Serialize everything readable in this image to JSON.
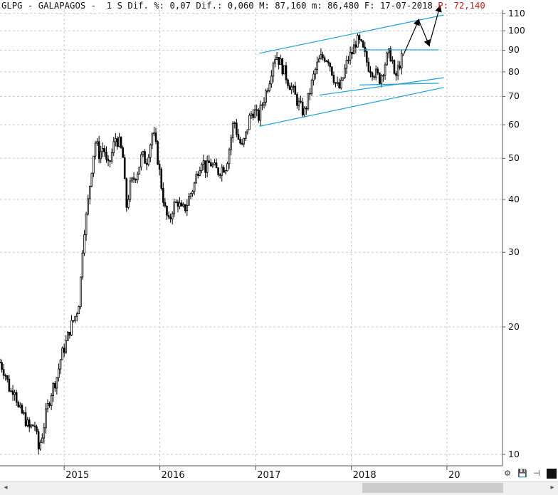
{
  "infobar": {
    "symbol": "GLPG",
    "name": "GALAPAGOS",
    "period": "1 S",
    "dif_pct_label": "Dif. %:",
    "dif_pct_value": "0,07",
    "dif_label": "Dif.:",
    "dif_value": "0,060",
    "max_label": "M:",
    "max_value": "87,160",
    "min_label": "m:",
    "min_value": "86,480",
    "date_label": "F:",
    "date_value": "17-07-2018",
    "price_label": "P:",
    "price_value": "72,140"
  },
  "colors": {
    "candles": "#000000",
    "trendlines": "#1aa3d4",
    "grid": "#c8c8c8",
    "price_label": "#d01818",
    "projection": "#000000"
  },
  "chart_data": {
    "type": "line",
    "title": "",
    "xlabel": "",
    "ylabel": "",
    "y_scale": "log",
    "ylim": [
      9.4,
      112
    ],
    "xlim": [
      "2014-05-01",
      "2019-08-01"
    ],
    "yticks": [
      10,
      20,
      30,
      40,
      50,
      60,
      70,
      80,
      90,
      100,
      110
    ],
    "xticks": [
      {
        "date": "2015-01-01",
        "label": "2015"
      },
      {
        "date": "2016-01-01",
        "label": "2016"
      },
      {
        "date": "2017-01-01",
        "label": "2017"
      },
      {
        "date": "2018-01-01",
        "label": "2018"
      },
      {
        "date": "2019-01-01",
        "label": "20"
      }
    ],
    "grid": true,
    "series": [
      {
        "style": "weekly-candles",
        "points": [
          [
            "2014-05-01",
            16.5
          ],
          [
            "2014-05-20",
            15.6
          ],
          [
            "2014-06-10",
            14.0
          ],
          [
            "2014-06-25",
            14.5
          ],
          [
            "2014-07-10",
            12.8
          ],
          [
            "2014-08-01",
            12.3
          ],
          [
            "2014-08-20",
            11.5
          ],
          [
            "2014-09-10",
            11.8
          ],
          [
            "2014-09-25",
            10.3
          ],
          [
            "2014-10-10",
            11.2
          ],
          [
            "2014-10-25",
            12.6
          ],
          [
            "2014-11-15",
            14.2
          ],
          [
            "2014-12-05",
            15.3
          ],
          [
            "2014-12-20",
            17.0
          ],
          [
            "2015-01-10",
            18.5
          ],
          [
            "2015-01-25",
            20.0
          ],
          [
            "2015-02-10",
            21.0
          ],
          [
            "2015-02-25",
            22.5
          ],
          [
            "2015-03-05",
            26.0
          ],
          [
            "2015-03-15",
            33.0
          ],
          [
            "2015-03-28",
            37.0
          ],
          [
            "2015-04-10",
            44.0
          ],
          [
            "2015-04-20",
            50.0
          ],
          [
            "2015-05-01",
            55.0
          ],
          [
            "2015-05-15",
            51.0
          ],
          [
            "2015-06-01",
            53.5
          ],
          [
            "2015-06-15",
            47.0
          ],
          [
            "2015-07-01",
            51.0
          ],
          [
            "2015-07-15",
            56.0
          ],
          [
            "2015-08-01",
            54.0
          ],
          [
            "2015-08-15",
            49.5
          ],
          [
            "2015-08-25",
            38.0
          ],
          [
            "2015-09-10",
            43.0
          ],
          [
            "2015-09-25",
            45.0
          ],
          [
            "2015-10-10",
            47.0
          ],
          [
            "2015-10-25",
            51.0
          ],
          [
            "2015-11-10",
            49.0
          ],
          [
            "2015-11-25",
            54.0
          ],
          [
            "2015-12-05",
            58.0
          ],
          [
            "2015-12-20",
            52.0
          ],
          [
            "2016-01-05",
            44.0
          ],
          [
            "2016-01-20",
            38.0
          ],
          [
            "2016-02-05",
            35.0
          ],
          [
            "2016-02-20",
            38.5
          ],
          [
            "2016-03-10",
            39.5
          ],
          [
            "2016-03-25",
            37.5
          ],
          [
            "2016-04-10",
            38.5
          ],
          [
            "2016-04-25",
            41.0
          ],
          [
            "2016-05-10",
            43.0
          ],
          [
            "2016-05-25",
            47.0
          ],
          [
            "2016-06-10",
            50.0
          ],
          [
            "2016-06-25",
            47.0
          ],
          [
            "2016-07-10",
            49.0
          ],
          [
            "2016-07-25",
            47.5
          ],
          [
            "2016-08-10",
            46.5
          ],
          [
            "2016-08-25",
            47.5
          ],
          [
            "2016-09-10",
            48.0
          ],
          [
            "2016-09-25",
            54.0
          ],
          [
            "2016-10-10",
            62.0
          ],
          [
            "2016-10-25",
            56.0
          ],
          [
            "2016-11-10",
            53.0
          ],
          [
            "2016-11-25",
            57.0
          ],
          [
            "2016-12-10",
            63.0
          ],
          [
            "2016-12-25",
            65.0
          ],
          [
            "2017-01-10",
            62.0
          ],
          [
            "2017-01-25",
            67.0
          ],
          [
            "2017-02-10",
            72.0
          ],
          [
            "2017-02-25",
            78.0
          ],
          [
            "2017-03-10",
            86.0
          ],
          [
            "2017-03-20",
            88.0
          ],
          [
            "2017-04-05",
            84.0
          ],
          [
            "2017-04-20",
            80.0
          ],
          [
            "2017-05-05",
            76.0
          ],
          [
            "2017-05-20",
            73.0
          ],
          [
            "2017-06-05",
            69.0
          ],
          [
            "2017-06-20",
            66.0
          ],
          [
            "2017-07-05",
            64.0
          ],
          [
            "2017-07-20",
            69.0
          ],
          [
            "2017-08-05",
            76.0
          ],
          [
            "2017-08-20",
            82.0
          ],
          [
            "2017-09-05",
            86.0
          ],
          [
            "2017-09-20",
            87.0
          ],
          [
            "2017-10-05",
            86.0
          ],
          [
            "2017-10-20",
            80.0
          ],
          [
            "2017-11-05",
            74.0
          ],
          [
            "2017-11-20",
            73.0
          ],
          [
            "2017-12-05",
            80.0
          ],
          [
            "2017-12-20",
            86.0
          ],
          [
            "2018-01-05",
            89.0
          ],
          [
            "2018-01-20",
            95.0
          ],
          [
            "2018-02-05",
            93.0
          ],
          [
            "2018-02-20",
            88.0
          ],
          [
            "2018-03-05",
            83.0
          ],
          [
            "2018-03-20",
            81.0
          ],
          [
            "2018-04-05",
            79.0
          ],
          [
            "2018-04-20",
            77.0
          ],
          [
            "2018-05-05",
            82.0
          ],
          [
            "2018-05-15",
            86.0
          ],
          [
            "2018-05-25",
            88.0
          ],
          [
            "2018-06-05",
            87.0
          ],
          [
            "2018-06-15",
            76.0
          ],
          [
            "2018-06-25",
            80.0
          ],
          [
            "2018-07-05",
            84.0
          ],
          [
            "2018-07-17",
            87.2
          ]
        ]
      }
    ],
    "trendlines": [
      {
        "from": [
          "2017-01-15",
          88.5
        ],
        "to": [
          "2018-12-20",
          109.0
        ]
      },
      {
        "from": [
          "2017-01-15",
          59.5
        ],
        "to": [
          "2018-12-20",
          73.5
        ]
      },
      {
        "from": [
          "2017-09-01",
          70.5
        ],
        "to": [
          "2018-12-20",
          77.5
        ]
      },
      {
        "from": [
          "2018-02-01",
          90.2
        ],
        "to": [
          "2018-12-01",
          90.2
        ]
      },
      {
        "from": [
          "2018-02-01",
          74.5
        ],
        "to": [
          "2018-12-01",
          75.2
        ]
      }
    ],
    "projection_path": [
      [
        "2018-07-17",
        87.2
      ],
      [
        "2018-09-15",
        106.0
      ],
      [
        "2018-10-25",
        92.5
      ],
      [
        "2018-12-05",
        114.0
      ]
    ]
  },
  "controls": {
    "scroll_left": "◂",
    "scroll_right": "▸",
    "tool_settings": "⚙",
    "tool_save": "💾",
    "tool_pin": "⊣"
  }
}
